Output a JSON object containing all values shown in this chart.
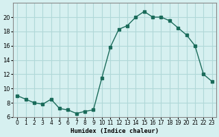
{
  "x": [
    0,
    1,
    2,
    3,
    4,
    5,
    6,
    7,
    8,
    9,
    10,
    11,
    12,
    13,
    14,
    15,
    16,
    17,
    18,
    19,
    20,
    21,
    22,
    23
  ],
  "y": [
    9,
    8.5,
    8,
    7.8,
    8.5,
    7.2,
    7,
    6.5,
    6.8,
    7,
    11.5,
    15.8,
    18.3,
    18.8,
    20,
    20.8,
    20,
    20,
    19.5,
    18.5,
    17.5,
    16,
    12,
    11
  ],
  "xlabel": "Humidex (Indice chaleur)",
  "ylabel": "",
  "bg_color": "#d6f0f0",
  "line_color": "#1a6b5a",
  "marker_color": "#1a6b5a",
  "grid_color": "#b0d8d8",
  "ylim": [
    6,
    22
  ],
  "xlim": [
    -0.5,
    23.5
  ],
  "yticks": [
    6,
    8,
    10,
    12,
    14,
    16,
    18,
    20
  ],
  "xticks": [
    0,
    1,
    2,
    3,
    4,
    5,
    6,
    7,
    8,
    9,
    10,
    11,
    12,
    13,
    14,
    15,
    16,
    17,
    18,
    19,
    20,
    21,
    22,
    23
  ]
}
